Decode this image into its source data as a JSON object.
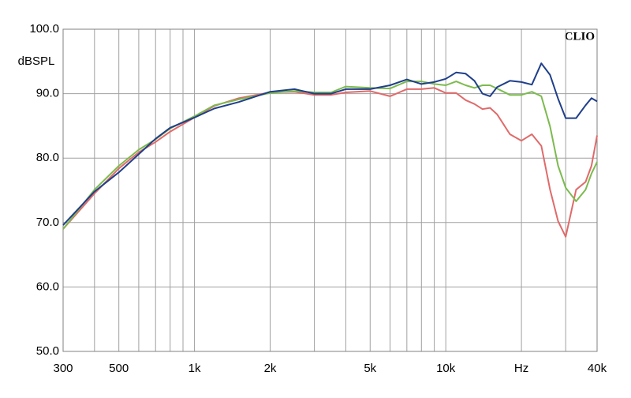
{
  "chart_data": {
    "type": "line",
    "y_label": "dBSPL",
    "annotation": "CLIO",
    "x": [
      300,
      400,
      500,
      600,
      700,
      800,
      1000,
      1200,
      1500,
      2000,
      2500,
      3000,
      3500,
      4000,
      5000,
      6000,
      7000,
      8000,
      9000,
      10000,
      11000,
      12000,
      13000,
      14000,
      15000,
      16000,
      18000,
      20000,
      22000,
      24000,
      26000,
      28000,
      30000,
      33000,
      36000,
      38000,
      40000
    ],
    "series": [
      {
        "color": "#e06a6a",
        "values": [
          69,
          74.5,
          78.4,
          80.9,
          82.5,
          84.1,
          86.3,
          88.1,
          89.3,
          90.2,
          90.3,
          89.8,
          89.8,
          90.2,
          90.4,
          89.6,
          90.7,
          90.7,
          90.9,
          90.1,
          90.1,
          89,
          88.4,
          87.6,
          87.8,
          86.8,
          83.7,
          82.7,
          83.7,
          81.9,
          75.1,
          70.2,
          67.8,
          75.1,
          76.3,
          78.8,
          83.5
        ]
      },
      {
        "color": "#7cba4e",
        "values": [
          69,
          75.1,
          78.8,
          81.3,
          82.9,
          84.6,
          86.5,
          88.2,
          89.1,
          90.1,
          90.4,
          90.2,
          90.2,
          91.1,
          90.9,
          90.8,
          91.9,
          91.9,
          91.5,
          91.3,
          91.9,
          91.3,
          90.9,
          91.3,
          91.3,
          90.8,
          89.8,
          89.8,
          90.3,
          89.6,
          84.9,
          78.8,
          75.4,
          73.3,
          75.1,
          77.6,
          79.4
        ]
      },
      {
        "color": "#1f3f8a",
        "values": [
          69.6,
          74.8,
          77.8,
          80.6,
          83,
          84.7,
          86.3,
          87.7,
          88.7,
          90.3,
          90.7,
          90,
          90,
          90.7,
          90.7,
          91.3,
          92.2,
          91.5,
          91.8,
          92.3,
          93.3,
          93.1,
          92,
          90,
          89.6,
          91,
          92,
          91.8,
          91.4,
          94.7,
          92.9,
          89.2,
          86.2,
          86.2,
          88.2,
          89.3,
          88.8
        ]
      }
    ],
    "xscale": "log",
    "xlim": [
      300,
      40000
    ],
    "xticks": [
      300,
      500,
      {
        "value": 1000,
        "label": "1k"
      },
      {
        "value": 2000,
        "label": "2k"
      },
      {
        "value": 5000,
        "label": "5k"
      },
      {
        "value": 10000,
        "label": "10k"
      },
      {
        "value": 20000,
        "label": "Hz"
      },
      {
        "value": 40000,
        "label": "40k"
      }
    ],
    "xminor": [
      400,
      600,
      700,
      800,
      900,
      3000,
      4000,
      6000,
      7000,
      8000,
      9000,
      30000
    ],
    "ylim": [
      50,
      100
    ],
    "yticks": [
      {
        "value": 50,
        "label": "50.0"
      },
      {
        "value": 60,
        "label": "60.0"
      },
      {
        "value": 70,
        "label": "70.0"
      },
      {
        "value": 80,
        "label": "80.0"
      },
      {
        "value": 90,
        "label": "90.0"
      },
      {
        "value": 100,
        "label": "100.0"
      }
    ],
    "grid": true
  }
}
